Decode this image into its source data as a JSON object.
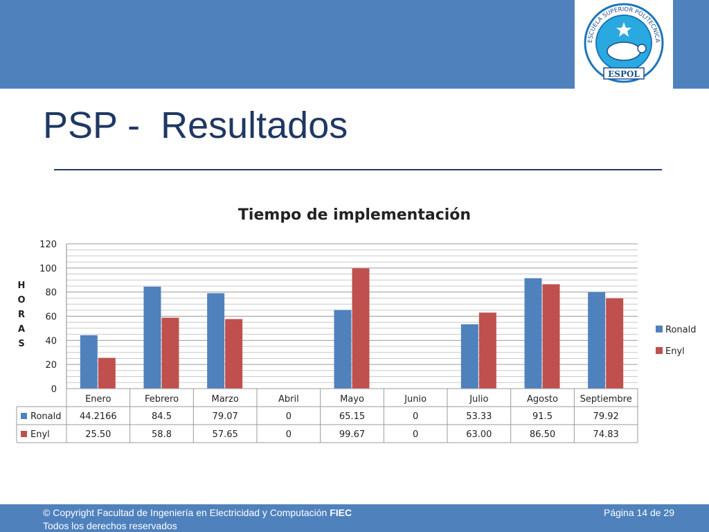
{
  "slide": {
    "title": "PSP -  Resultados",
    "footer": {
      "copyright_prefix": "© Copyright  Facultad de Ingeniería en Electricidad y Computación ",
      "copyright_bold": "FIEC",
      "rights": "Todos los derechos reservados",
      "page": "Página 14 de 29"
    },
    "logo": {
      "text_ring": "ESCUELA SUPERIOR POLITECNICA DEL LITORAL",
      "text_banner": "ESPOL"
    }
  },
  "colors": {
    "band": "#4f81bd",
    "title": "#1f3864",
    "ronald": "#4f81bd",
    "enyl": "#c0504d"
  },
  "chart_data": {
    "type": "bar",
    "title": "Tiempo de implementación",
    "ylabel": "HORAS",
    "xlabel": "",
    "ylim": [
      0,
      120
    ],
    "yticks": [
      0,
      20,
      40,
      60,
      80,
      100,
      120
    ],
    "grid": true,
    "legend": "right",
    "categories": [
      "Enero",
      "Febrero",
      "Marzo",
      "Abril",
      "Mayo",
      "Junio",
      "Julio",
      "Agosto",
      "Septiembre"
    ],
    "series": [
      {
        "name": "Ronald",
        "values": [
          44.2166,
          84.5,
          79.07,
          0,
          65.15,
          0,
          53.33,
          91.5,
          79.92
        ],
        "labels": [
          "44.2166",
          "84.5",
          "79.07",
          "0",
          "65.15",
          "0",
          "53.33",
          "91.5",
          "79.92"
        ]
      },
      {
        "name": "Enyl",
        "values": [
          25.5,
          58.8,
          57.65,
          0,
          99.67,
          0,
          63.0,
          86.5,
          74.83
        ],
        "labels": [
          "25.50",
          "58.8",
          "57.65",
          "0",
          "99.67",
          "0",
          "63.00",
          "86.50",
          "74.83"
        ]
      }
    ]
  }
}
